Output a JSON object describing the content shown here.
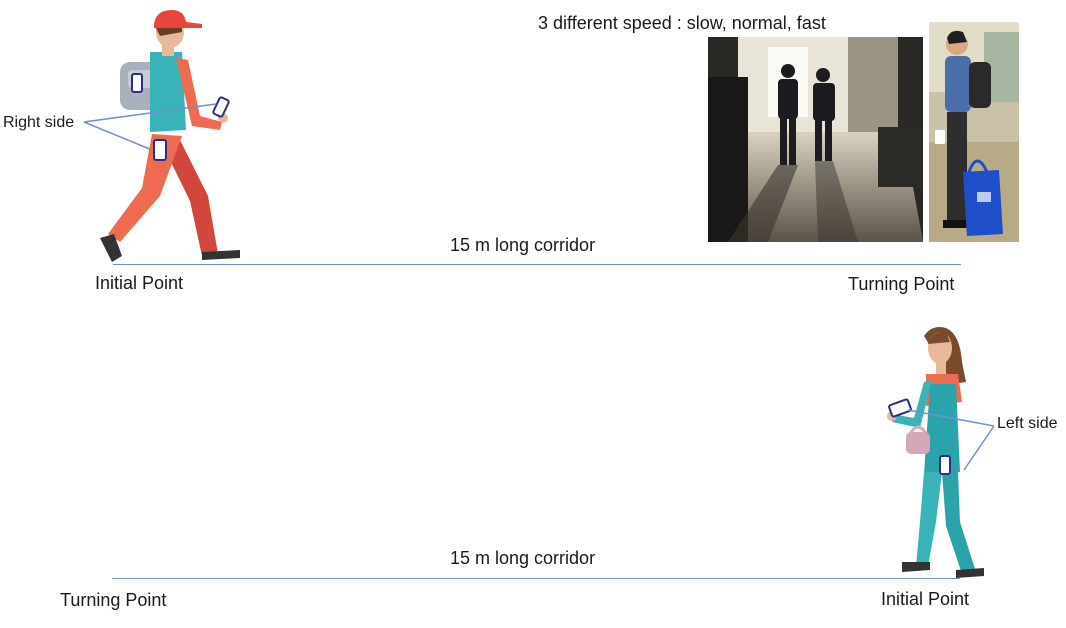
{
  "speed_caption": "3 different speed : slow, normal, fast",
  "top_scene": {
    "side_label": "Right side",
    "corridor_label": "15 m long corridor",
    "start_label": "Initial Point",
    "end_label": "Turning Point"
  },
  "bottom_scene": {
    "side_label": "Left side",
    "corridor_label": "15 m long corridor",
    "start_label": "Initial Point",
    "end_label": "Turning Point"
  },
  "colors": {
    "line": "#6f8fce",
    "cap": "#e8453c",
    "shirt": "#3ab3b8",
    "pants_light": "#ee6a50",
    "pants_dark": "#d2473d",
    "skin": "#e8b89a",
    "hair_female": "#7a4a2c",
    "teal_overall": "#2aa4aa",
    "phone_outline": "#2b2f8a"
  }
}
